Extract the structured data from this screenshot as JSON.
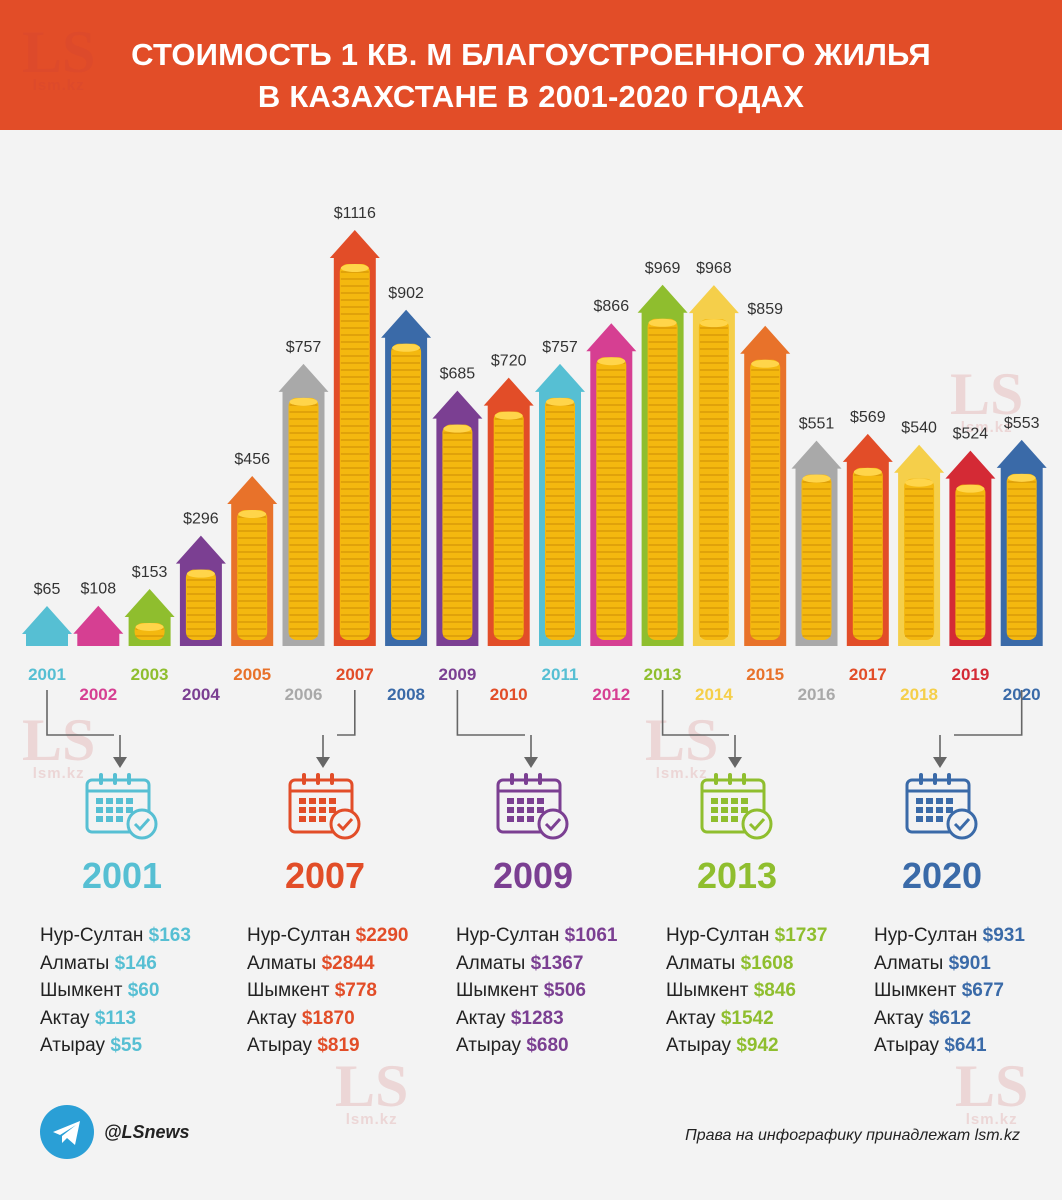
{
  "title_line1": "СТОИМОСТЬ 1 КВ. М БЛАГОУСТРОЕННОГО ЖИЛЬЯ",
  "title_line2": "В КАЗАХСТАНЕ В 2001-2020 ГОДАХ",
  "watermark": {
    "logo": "LS",
    "site": "lsm.kz"
  },
  "chart_data": {
    "type": "bar",
    "title": "Стоимость 1 кв. м благоустроенного жилья в Казахстане в 2001-2020 годах",
    "categories": [
      "2001",
      "2002",
      "2003",
      "2004",
      "2005",
      "2006",
      "2007",
      "2008",
      "2009",
      "2010",
      "2011",
      "2012",
      "2013",
      "2014",
      "2015",
      "2016",
      "2017",
      "2018",
      "2019",
      "2020"
    ],
    "values": [
      65,
      108,
      153,
      296,
      456,
      757,
      1116,
      902,
      685,
      720,
      757,
      866,
      969,
      968,
      859,
      551,
      569,
      540,
      524,
      553
    ],
    "labels": [
      "$65",
      "$108",
      "$153",
      "$296",
      "$456",
      "$757",
      "$1116",
      "$902",
      "$685",
      "$720",
      "$757",
      "$866",
      "$969",
      "$968",
      "$859",
      "$551",
      "$569",
      "$540",
      "$524",
      "$553"
    ],
    "colors": [
      "#56bfd3",
      "#d63f92",
      "#8fbe2e",
      "#7b3f92",
      "#e8722a",
      "#a9a9a9",
      "#e24d28",
      "#3a6aa8",
      "#7b3f92",
      "#e24d28",
      "#56bfd3",
      "#d63f92",
      "#8fbe2e",
      "#f5cf4a",
      "#e8722a",
      "#a9a9a9",
      "#e24d28",
      "#f5cf4a",
      "#d42a35",
      "#3a6aa8"
    ],
    "unit": "USD per sq. m",
    "ylim": [
      0,
      1116
    ]
  },
  "details": [
    {
      "year": "2001",
      "color": "#56bfd3",
      "source_index": 0,
      "cities": [
        {
          "name": "Нур-Султан",
          "value": "$163"
        },
        {
          "name": "Алматы",
          "value": "$146"
        },
        {
          "name": "Шымкент",
          "value": "$60"
        },
        {
          "name": "Актау",
          "value": "$113"
        },
        {
          "name": "Атырау",
          "value": "$55"
        }
      ]
    },
    {
      "year": "2007",
      "color": "#e24d28",
      "source_index": 6,
      "cities": [
        {
          "name": "Нур-Султан",
          "value": "$2290"
        },
        {
          "name": "Алматы",
          "value": "$2844"
        },
        {
          "name": "Шымкент",
          "value": "$778"
        },
        {
          "name": "Актау",
          "value": "$1870"
        },
        {
          "name": "Атырау",
          "value": "$819"
        }
      ]
    },
    {
      "year": "2009",
      "color": "#7b3f92",
      "source_index": 8,
      "cities": [
        {
          "name": "Нур-Султан",
          "value": "$1061"
        },
        {
          "name": "Алматы",
          "value": "$1367"
        },
        {
          "name": "Шымкент",
          "value": "$506"
        },
        {
          "name": "Актау",
          "value": "$1283"
        },
        {
          "name": "Атырау",
          "value": "$680"
        }
      ]
    },
    {
      "year": "2013",
      "color": "#8fbe2e",
      "source_index": 12,
      "cities": [
        {
          "name": "Нур-Султан",
          "value": "$1737"
        },
        {
          "name": "Алматы",
          "value": "$1608"
        },
        {
          "name": "Шымкент",
          "value": "$846"
        },
        {
          "name": "Актау",
          "value": "$1542"
        },
        {
          "name": "Атырау",
          "value": "$942"
        }
      ]
    },
    {
      "year": "2020",
      "color": "#3a6aa8",
      "source_index": 19,
      "cities": [
        {
          "name": "Нур-Султан",
          "value": "$931"
        },
        {
          "name": "Алматы",
          "value": "$901"
        },
        {
          "name": "Шымкент",
          "value": "$677"
        },
        {
          "name": "Актау",
          "value": "$612"
        },
        {
          "name": "Атырау",
          "value": "$641"
        }
      ]
    }
  ],
  "footer": {
    "telegram_handle": "@LSnews",
    "credit": "Права на инфографику принадлежат lsm.kz"
  },
  "icons": {
    "calendar": "calendar-check-icon",
    "telegram": "telegram-icon"
  }
}
